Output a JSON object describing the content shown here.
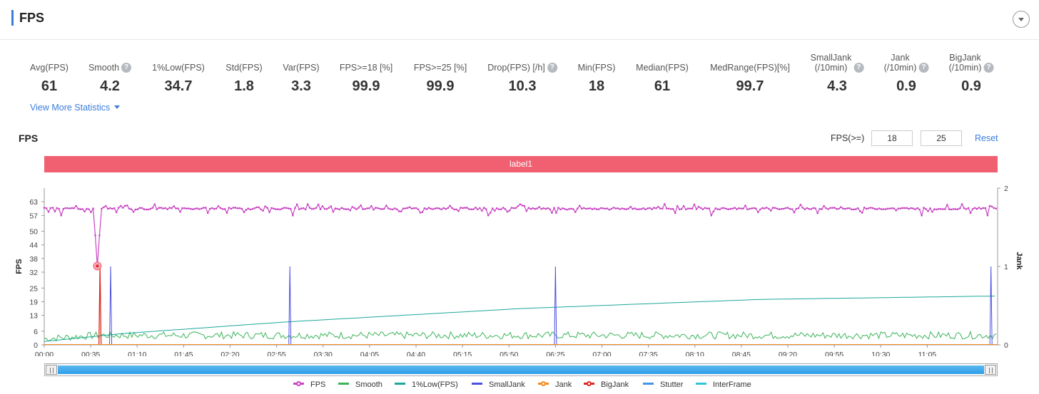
{
  "header": {
    "title": "FPS"
  },
  "stats": [
    {
      "label": [
        "Avg(FPS)"
      ],
      "value": "61",
      "help": false
    },
    {
      "label": [
        "Smooth"
      ],
      "value": "4.2",
      "help": true
    },
    {
      "label": [
        "1%Low(FPS)"
      ],
      "value": "34.7",
      "help": false
    },
    {
      "label": [
        "Std(FPS)"
      ],
      "value": "1.8",
      "help": false
    },
    {
      "label": [
        "Var(FPS)"
      ],
      "value": "3.3",
      "help": false
    },
    {
      "label": [
        "FPS>=18 [%]"
      ],
      "value": "99.9",
      "help": false
    },
    {
      "label": [
        "FPS>=25 [%]"
      ],
      "value": "99.9",
      "help": false
    },
    {
      "label": [
        "Drop(FPS) [/h]"
      ],
      "value": "10.3",
      "help": true
    },
    {
      "label": [
        "Min(FPS)"
      ],
      "value": "18",
      "help": false
    },
    {
      "label": [
        "Median(FPS)"
      ],
      "value": "61",
      "help": false
    },
    {
      "label": [
        "MedRange(FPS)[%]"
      ],
      "value": "99.7",
      "help": false
    },
    {
      "label": [
        "SmallJank",
        "(/10min)"
      ],
      "value": "4.3",
      "help": true
    },
    {
      "label": [
        "Jank",
        "(/10min)"
      ],
      "value": "0.9",
      "help": true
    },
    {
      "label": [
        "BigJank",
        "(/10min)"
      ],
      "value": "0.9",
      "help": true
    }
  ],
  "view_more": "View More Statistics",
  "chart_section": {
    "title": "FPS",
    "threshold_label": "FPS(>=)",
    "threshold_low": "18",
    "threshold_high": "25",
    "reset": "Reset",
    "band_label": "label1"
  },
  "help_glyph": "?",
  "legend": [
    {
      "name": "FPS",
      "color": "#c945c4",
      "marker": true
    },
    {
      "name": "Smooth",
      "color": "#3cb45a",
      "marker": false
    },
    {
      "name": "1%Low(FPS)",
      "color": "#1ca79a",
      "marker": false
    },
    {
      "name": "SmallJank",
      "color": "#4b4fe0",
      "marker": false
    },
    {
      "name": "Jank",
      "color": "#f58a1f",
      "marker": true
    },
    {
      "name": "BigJank",
      "color": "#e02424",
      "marker": true
    },
    {
      "name": "Stutter",
      "color": "#4296e8",
      "marker": false
    },
    {
      "name": "InterFrame",
      "color": "#2cc6d6",
      "marker": false
    }
  ],
  "chart_data": {
    "type": "line",
    "xlabel": "",
    "ylabel": "FPS",
    "y2label": "Jank",
    "x_ticks": [
      "00:00",
      "00:35",
      "01:10",
      "01:45",
      "02:20",
      "02:55",
      "03:30",
      "04:05",
      "04:40",
      "05:15",
      "05:50",
      "06:25",
      "07:00",
      "07:35",
      "08:10",
      "08:45",
      "09:20",
      "09:55",
      "10:30",
      "11:05"
    ],
    "x_range_seconds": [
      0,
      718
    ],
    "y_ticks": [
      0,
      6,
      13,
      19,
      25,
      32,
      38,
      44,
      50,
      57,
      63
    ],
    "y_range": [
      0,
      69
    ],
    "y2_ticks": [
      0,
      1,
      2
    ],
    "y2_range": [
      0,
      2
    ],
    "series": [
      {
        "name": "FPS",
        "approx_value": 60,
        "dip_at_seconds": 40,
        "dip_min": 34.7
      },
      {
        "name": "Smooth",
        "approx_value": 4.2
      },
      {
        "name": "1%Low(FPS)",
        "values_at_seconds": [
          [
            0,
            1.5
          ],
          [
            60,
            5
          ],
          [
            180,
            10
          ],
          [
            360,
            16
          ],
          [
            540,
            20
          ],
          [
            718,
            21.5
          ]
        ]
      },
      {
        "name": "SmallJank",
        "spikes_at_seconds": [
          50,
          185,
          385,
          713
        ],
        "spike_value": 1
      },
      {
        "name": "Jank",
        "spikes_at_seconds": [
          42
        ],
        "spike_value": 1
      },
      {
        "name": "BigJank",
        "spikes_at_seconds": [
          42
        ],
        "spike_value": 1
      }
    ]
  }
}
